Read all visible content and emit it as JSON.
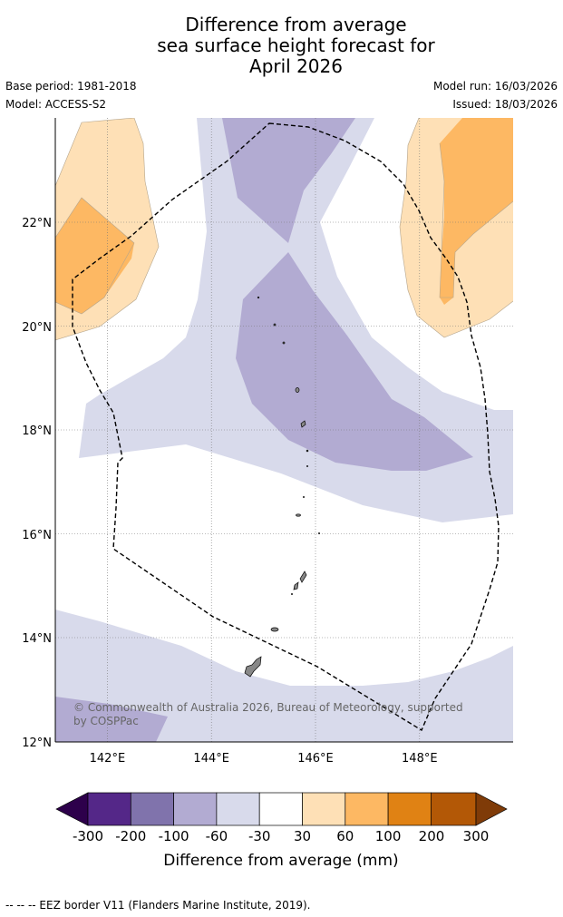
{
  "title": {
    "line1": "Difference from average",
    "line2": "sea surface height forecast for",
    "line3": "April 2026"
  },
  "meta": {
    "base_period": "Base period: 1981-2018",
    "model": "Model: ACCESS-S2",
    "model_run": "Model run: 16/03/2026",
    "issued": "Issued: 18/03/2026"
  },
  "map": {
    "lon_range": [
      141,
      149.8
    ],
    "lat_range": [
      12,
      24
    ],
    "lon_ticks": [
      {
        "value": 142,
        "label": "142°E"
      },
      {
        "value": 144,
        "label": "144°E"
      },
      {
        "value": 146,
        "label": "146°E"
      },
      {
        "value": 148,
        "label": "148°E"
      }
    ],
    "lat_ticks": [
      {
        "value": 12,
        "label": "12°N"
      },
      {
        "value": 14,
        "label": "14°N"
      },
      {
        "value": 16,
        "label": "16°N"
      },
      {
        "value": 18,
        "label": "18°N"
      },
      {
        "value": 20,
        "label": "20°N"
      },
      {
        "value": 22,
        "label": "22°N"
      }
    ],
    "copyright": {
      "line1": "© Commonwealth of Australia 2026, Bureau of Meteorology, supported",
      "line2": "by COSPPac"
    }
  },
  "colorbar": {
    "title": "Difference from average (mm)",
    "labels": [
      "-300",
      "-200",
      "-100",
      "-60",
      "-30",
      "30",
      "60",
      "100",
      "200",
      "300"
    ],
    "colors": [
      "#2d004b",
      "#542788",
      "#8073ac",
      "#b2abd2",
      "#d8daeb",
      "#ffffff",
      "#fee0b6",
      "#fdb863",
      "#e08214",
      "#b35806",
      "#7f3b08"
    ]
  },
  "footnote": "--  --  -- EEZ border V11 (Flanders Marine Institute, 2019)."
}
